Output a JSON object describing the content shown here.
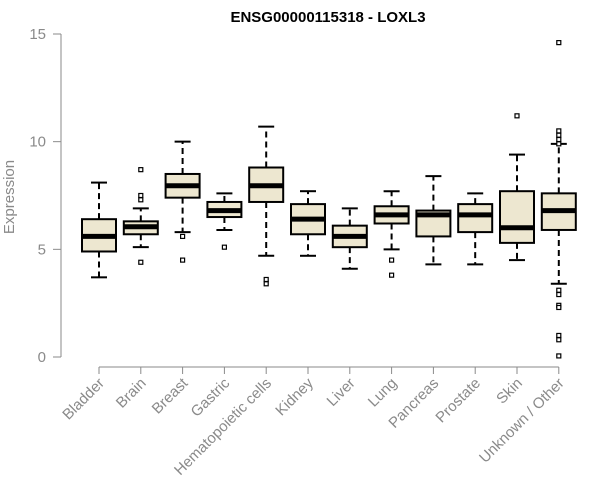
{
  "chart_data": {
    "type": "box",
    "title": "ENSG00000115318 - LOXL3",
    "ylabel": "Expression",
    "xlabel": "",
    "ylim": [
      0,
      15
    ],
    "yticks": [
      0,
      5,
      10,
      15
    ],
    "box_fill": "#ede7d0",
    "categories": [
      "Bladder",
      "Brain",
      "Breast",
      "Gastric",
      "Hematopoietic cells",
      "Kidney",
      "Liver",
      "Lung",
      "Pancreas",
      "Prostate",
      "Skin",
      "Unknown / Other"
    ],
    "boxes": [
      {
        "category": "Bladder",
        "whisker_low": 3.7,
        "q1": 4.9,
        "median": 5.6,
        "q3": 6.4,
        "whisker_high": 8.1,
        "outliers": []
      },
      {
        "category": "Brain",
        "whisker_low": 5.1,
        "q1": 5.7,
        "median": 6.05,
        "q3": 6.3,
        "whisker_high": 6.9,
        "outliers": [
          8.7,
          7.5,
          7.3,
          4.4
        ]
      },
      {
        "category": "Breast",
        "whisker_low": 5.8,
        "q1": 7.4,
        "median": 7.95,
        "q3": 8.5,
        "whisker_high": 10.0,
        "outliers": [
          5.6,
          4.5
        ]
      },
      {
        "category": "Gastric",
        "whisker_low": 5.9,
        "q1": 6.5,
        "median": 6.8,
        "q3": 7.2,
        "whisker_high": 7.6,
        "outliers": [
          5.1
        ]
      },
      {
        "category": "Hematopoietic cells",
        "whisker_low": 4.7,
        "q1": 7.2,
        "median": 7.95,
        "q3": 8.8,
        "whisker_high": 10.7,
        "outliers": [
          3.6,
          3.4
        ]
      },
      {
        "category": "Kidney",
        "whisker_low": 4.7,
        "q1": 5.7,
        "median": 6.4,
        "q3": 7.1,
        "whisker_high": 7.7,
        "outliers": []
      },
      {
        "category": "Liver",
        "whisker_low": 4.1,
        "q1": 5.1,
        "median": 5.6,
        "q3": 6.1,
        "whisker_high": 6.9,
        "outliers": []
      },
      {
        "category": "Lung",
        "whisker_low": 5.0,
        "q1": 6.2,
        "median": 6.6,
        "q3": 7.0,
        "whisker_high": 7.7,
        "outliers": [
          4.5,
          3.8
        ]
      },
      {
        "category": "Pancreas",
        "whisker_low": 4.3,
        "q1": 5.6,
        "median": 6.6,
        "q3": 6.8,
        "whisker_high": 8.4,
        "outliers": []
      },
      {
        "category": "Prostate",
        "whisker_low": 4.3,
        "q1": 5.8,
        "median": 6.6,
        "q3": 7.1,
        "whisker_high": 7.6,
        "outliers": []
      },
      {
        "category": "Skin",
        "whisker_low": 4.5,
        "q1": 5.3,
        "median": 6.0,
        "q3": 7.7,
        "whisker_high": 9.4,
        "outliers": [
          11.2
        ]
      },
      {
        "category": "Unknown / Other",
        "whisker_low": 3.4,
        "q1": 5.9,
        "median": 6.8,
        "q3": 7.6,
        "whisker_high": 9.9,
        "outliers": [
          14.6,
          10.5,
          10.3,
          10.1,
          9.9,
          3.1,
          2.9,
          2.4,
          2.3,
          1.0,
          0.8,
          0.05
        ]
      }
    ]
  }
}
